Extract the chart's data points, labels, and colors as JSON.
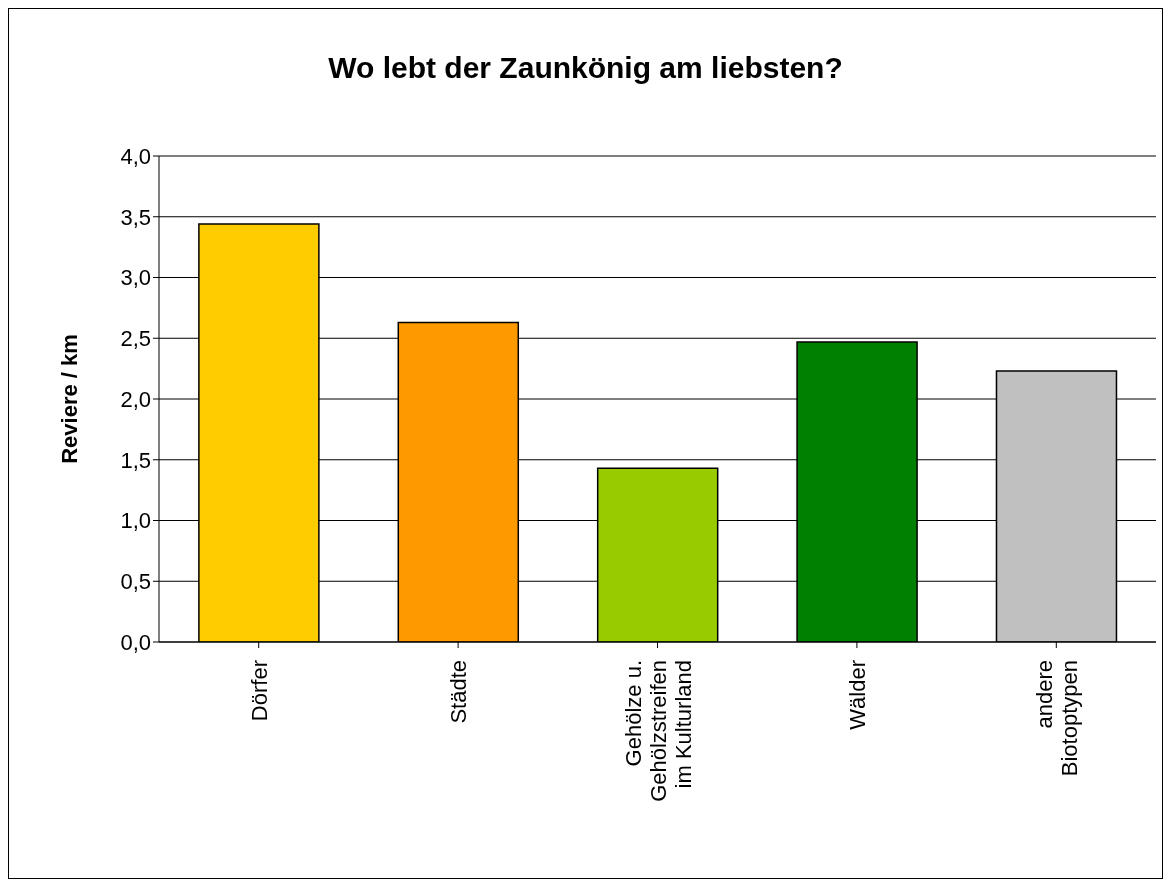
{
  "chart_data": {
    "type": "bar",
    "title": "Wo lebt der Zaunkönig am liebsten?",
    "ylabel": "Reviere / km",
    "categories": [
      "Dörfer",
      "Städte",
      "Gehölze u.\nGehölzstreifen\nim Kulturland",
      "Wälder",
      "andere\nBiotoptypen"
    ],
    "values": [
      3.44,
      2.63,
      1.43,
      2.47,
      2.23
    ],
    "colors": [
      "#ffcc00",
      "#ff9900",
      "#99cc00",
      "#008000",
      "#c0c0c0"
    ],
    "ylim": [
      0,
      4
    ],
    "yticks": [
      {
        "value": 0,
        "label": "0,0"
      },
      {
        "value": 0.5,
        "label": "0,5"
      },
      {
        "value": 1,
        "label": "1,0"
      },
      {
        "value": 1.5,
        "label": "1,5"
      },
      {
        "value": 2,
        "label": "2,0"
      },
      {
        "value": 2.5,
        "label": "2,5"
      },
      {
        "value": 3,
        "label": "3,0"
      },
      {
        "value": 3.5,
        "label": "3,5"
      },
      {
        "value": 4,
        "label": "4,0"
      }
    ],
    "grid": "y",
    "legend": false
  }
}
